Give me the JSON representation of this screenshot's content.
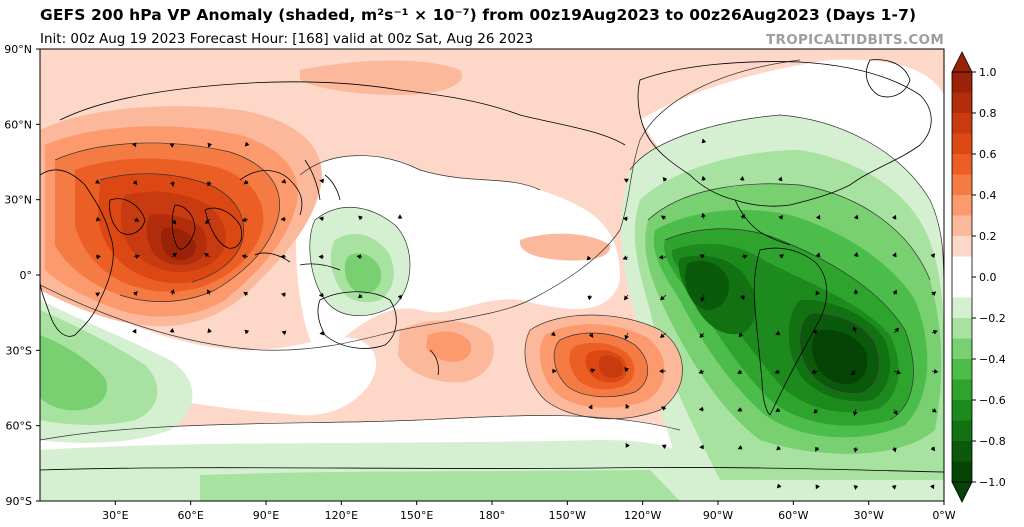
{
  "header": {
    "title": "GEFS 200 hPa VP Anomaly (shaded, m²s⁻¹ × 10⁻⁷) from 00z19Aug2023 to 00z26Aug2023 (Days 1-7)",
    "subtitle": "Init: 00z Aug 19 2023   Forecast Hour: [168]   valid at 00z Sat, Aug 26 2023",
    "watermark": "TROPICALTIDBITS.COM"
  },
  "map": {
    "projection": "equirectangular",
    "lat_labels": [
      "90°N",
      "60°N",
      "30°N",
      "0°",
      "30°S",
      "60°S",
      "90°S"
    ],
    "lon_labels": [
      "30°E",
      "60°E",
      "90°E",
      "120°E",
      "150°E",
      "180°",
      "150°W",
      "120°W",
      "90°W",
      "60°W",
      "30°W",
      "0°W"
    ]
  },
  "colorbar": {
    "min": -1.0,
    "max": 1.0,
    "tick_labels": [
      "1.0",
      "0.8",
      "0.6",
      "0.4",
      "0.2",
      "0.0",
      "−0.2",
      "−0.4",
      "−0.6",
      "−0.8",
      "−1.0"
    ],
    "positive_colors": [
      "#fdd8c8",
      "#fcb89a",
      "#fc9a6e",
      "#f57b45",
      "#ec5f24",
      "#dc4814",
      "#c83a10",
      "#b12d0c",
      "#9a2208"
    ],
    "negative_colors": [
      "#d5f0d0",
      "#a8e2a0",
      "#78d070",
      "#4cbc4a",
      "#2ea42e",
      "#1d8a1d",
      "#127212",
      "#0b5a0b",
      "#064406"
    ],
    "neutral_color": "#ffffff"
  },
  "anomalies": [
    {
      "label": "positive center over Arabian Sea / India",
      "lon": 60,
      "lat": 13,
      "value": 0.85
    },
    {
      "label": "positive center South Pacific",
      "lon": -127,
      "lat": -33,
      "value": 0.7
    },
    {
      "label": "negative center South Atlantic",
      "lon": -30,
      "lat": -35,
      "value": -1.0
    },
    {
      "label": "negative center eastern Pacific",
      "lon": -95,
      "lat": 5,
      "value": -0.8
    },
    {
      "label": "negative center western Pacific",
      "lon": 137,
      "lat": 5,
      "value": -0.35
    }
  ]
}
